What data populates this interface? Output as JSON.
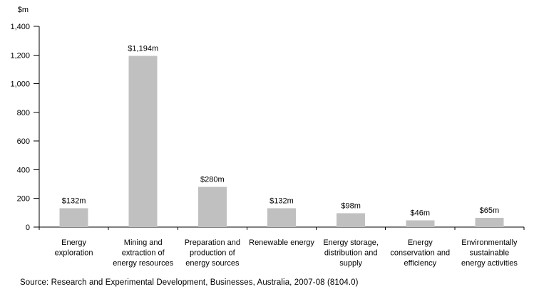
{
  "chart_data": {
    "type": "bar",
    "title": "",
    "xlabel": "",
    "ylabel": "$m",
    "categories": [
      "Energy exploration",
      "Mining and extraction of energy resources",
      "Preparation and production of energy sources",
      "Renewable energy",
      "Energy storage, distribution and supply",
      "Energy conservation and efficiency",
      "Environmentally sustainable energy activities"
    ],
    "category_lines": [
      [
        "Energy",
        "exploration"
      ],
      [
        "Mining and",
        "extraction of",
        "energy resources"
      ],
      [
        "Preparation and",
        "production of",
        "energy sources"
      ],
      [
        "Renewable energy"
      ],
      [
        "Energy storage,",
        "distribution and",
        "supply"
      ],
      [
        "Energy",
        "conservation and",
        "efficiency"
      ],
      [
        "Environmentally",
        "sustainable",
        "energy activities"
      ]
    ],
    "values": [
      132,
      1194,
      280,
      132,
      98,
      46,
      65
    ],
    "value_labels": [
      "$132m",
      "$1,194m",
      "$280m",
      "$132m",
      "$98m",
      "$46m",
      "$65m"
    ],
    "ylim": [
      0,
      1400
    ],
    "ytick_values": [
      0,
      200,
      400,
      600,
      800,
      1000,
      1200,
      1400
    ],
    "ytick_labels": [
      "0",
      "200",
      "400",
      "600",
      "800",
      "1,000",
      "1,200",
      "1,400"
    ],
    "grid": false,
    "legend": false,
    "bar_color": "#c0c0c0"
  },
  "source_note": "Source: Research and Experimental Development, Businesses, Australia, 2007-08 (8104.0)"
}
